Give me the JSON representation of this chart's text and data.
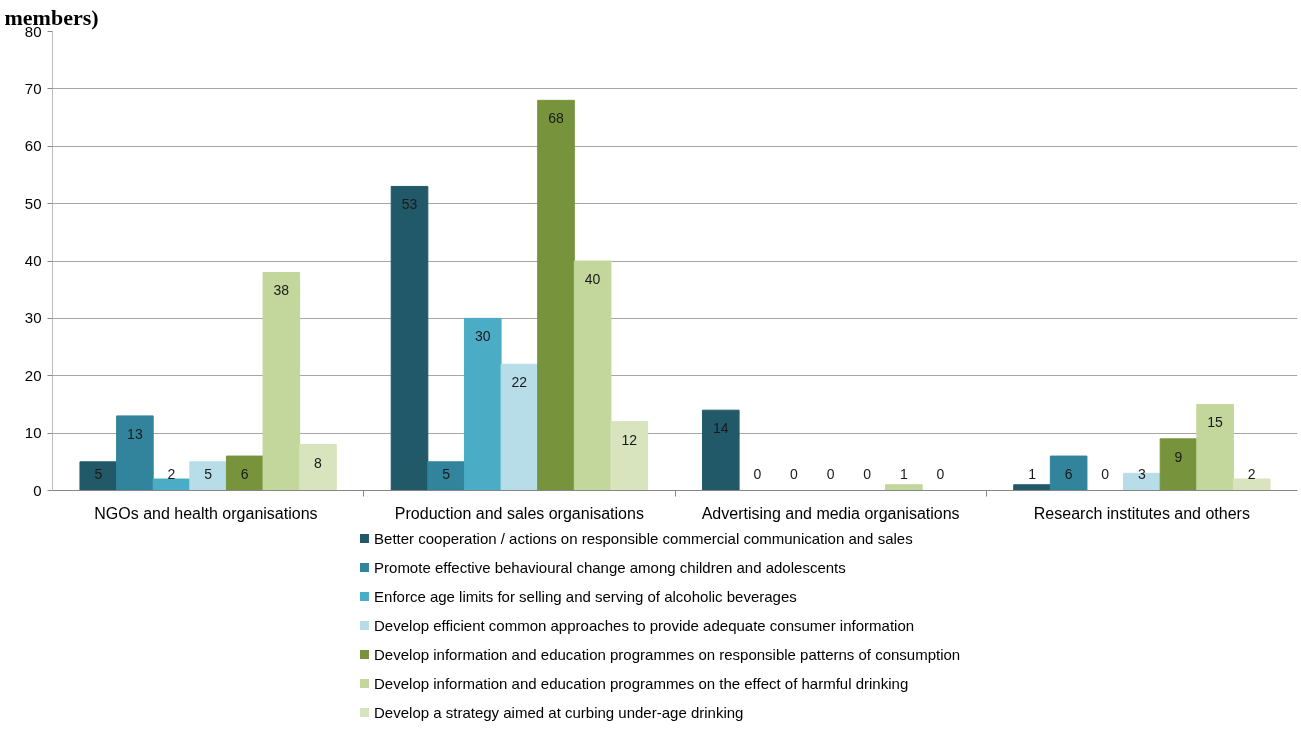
{
  "chart_data": {
    "type": "bar",
    "title": "members)",
    "categories": [
      "NGOs  and health organisations",
      "Production and sales organisations",
      "Advertising and media organisations",
      "Research institutes and others"
    ],
    "series": [
      {
        "name": "Better cooperation / actions on responsible commercial communication and sales",
        "color": "#215968",
        "values": [
          5,
          53,
          14,
          1
        ]
      },
      {
        "name": "Promote effective behavioural change among children and adolescents",
        "color": "#31849b",
        "values": [
          13,
          5,
          0,
          6
        ]
      },
      {
        "name": "Enforce age limits for selling and serving of alcoholic beverages",
        "color": "#4bacc6",
        "values": [
          2,
          30,
          0,
          0
        ]
      },
      {
        "name": "Develop efficient common approaches to provide adequate consumer information",
        "color": "#b7dde8",
        "values": [
          5,
          22,
          0,
          3
        ]
      },
      {
        "name": "Develop information and education programmes on responsible patterns of consumption",
        "color": "#77933c",
        "values": [
          6,
          68,
          0,
          9
        ]
      },
      {
        "name": "Develop information and education programmes on the effect of harmful drinking",
        "color": "#c3d69b",
        "values": [
          38,
          40,
          1,
          15
        ]
      },
      {
        "name": "Develop a strategy aimed at curbing under-age drinking",
        "color": "#d7e4bd",
        "values": [
          8,
          12,
          0,
          2
        ]
      }
    ],
    "ylim": [
      0,
      80
    ],
    "yticks": [
      0,
      10,
      20,
      30,
      40,
      50,
      60,
      70,
      80
    ],
    "grid": "y",
    "legend": "bottom",
    "data_labels": true
  }
}
